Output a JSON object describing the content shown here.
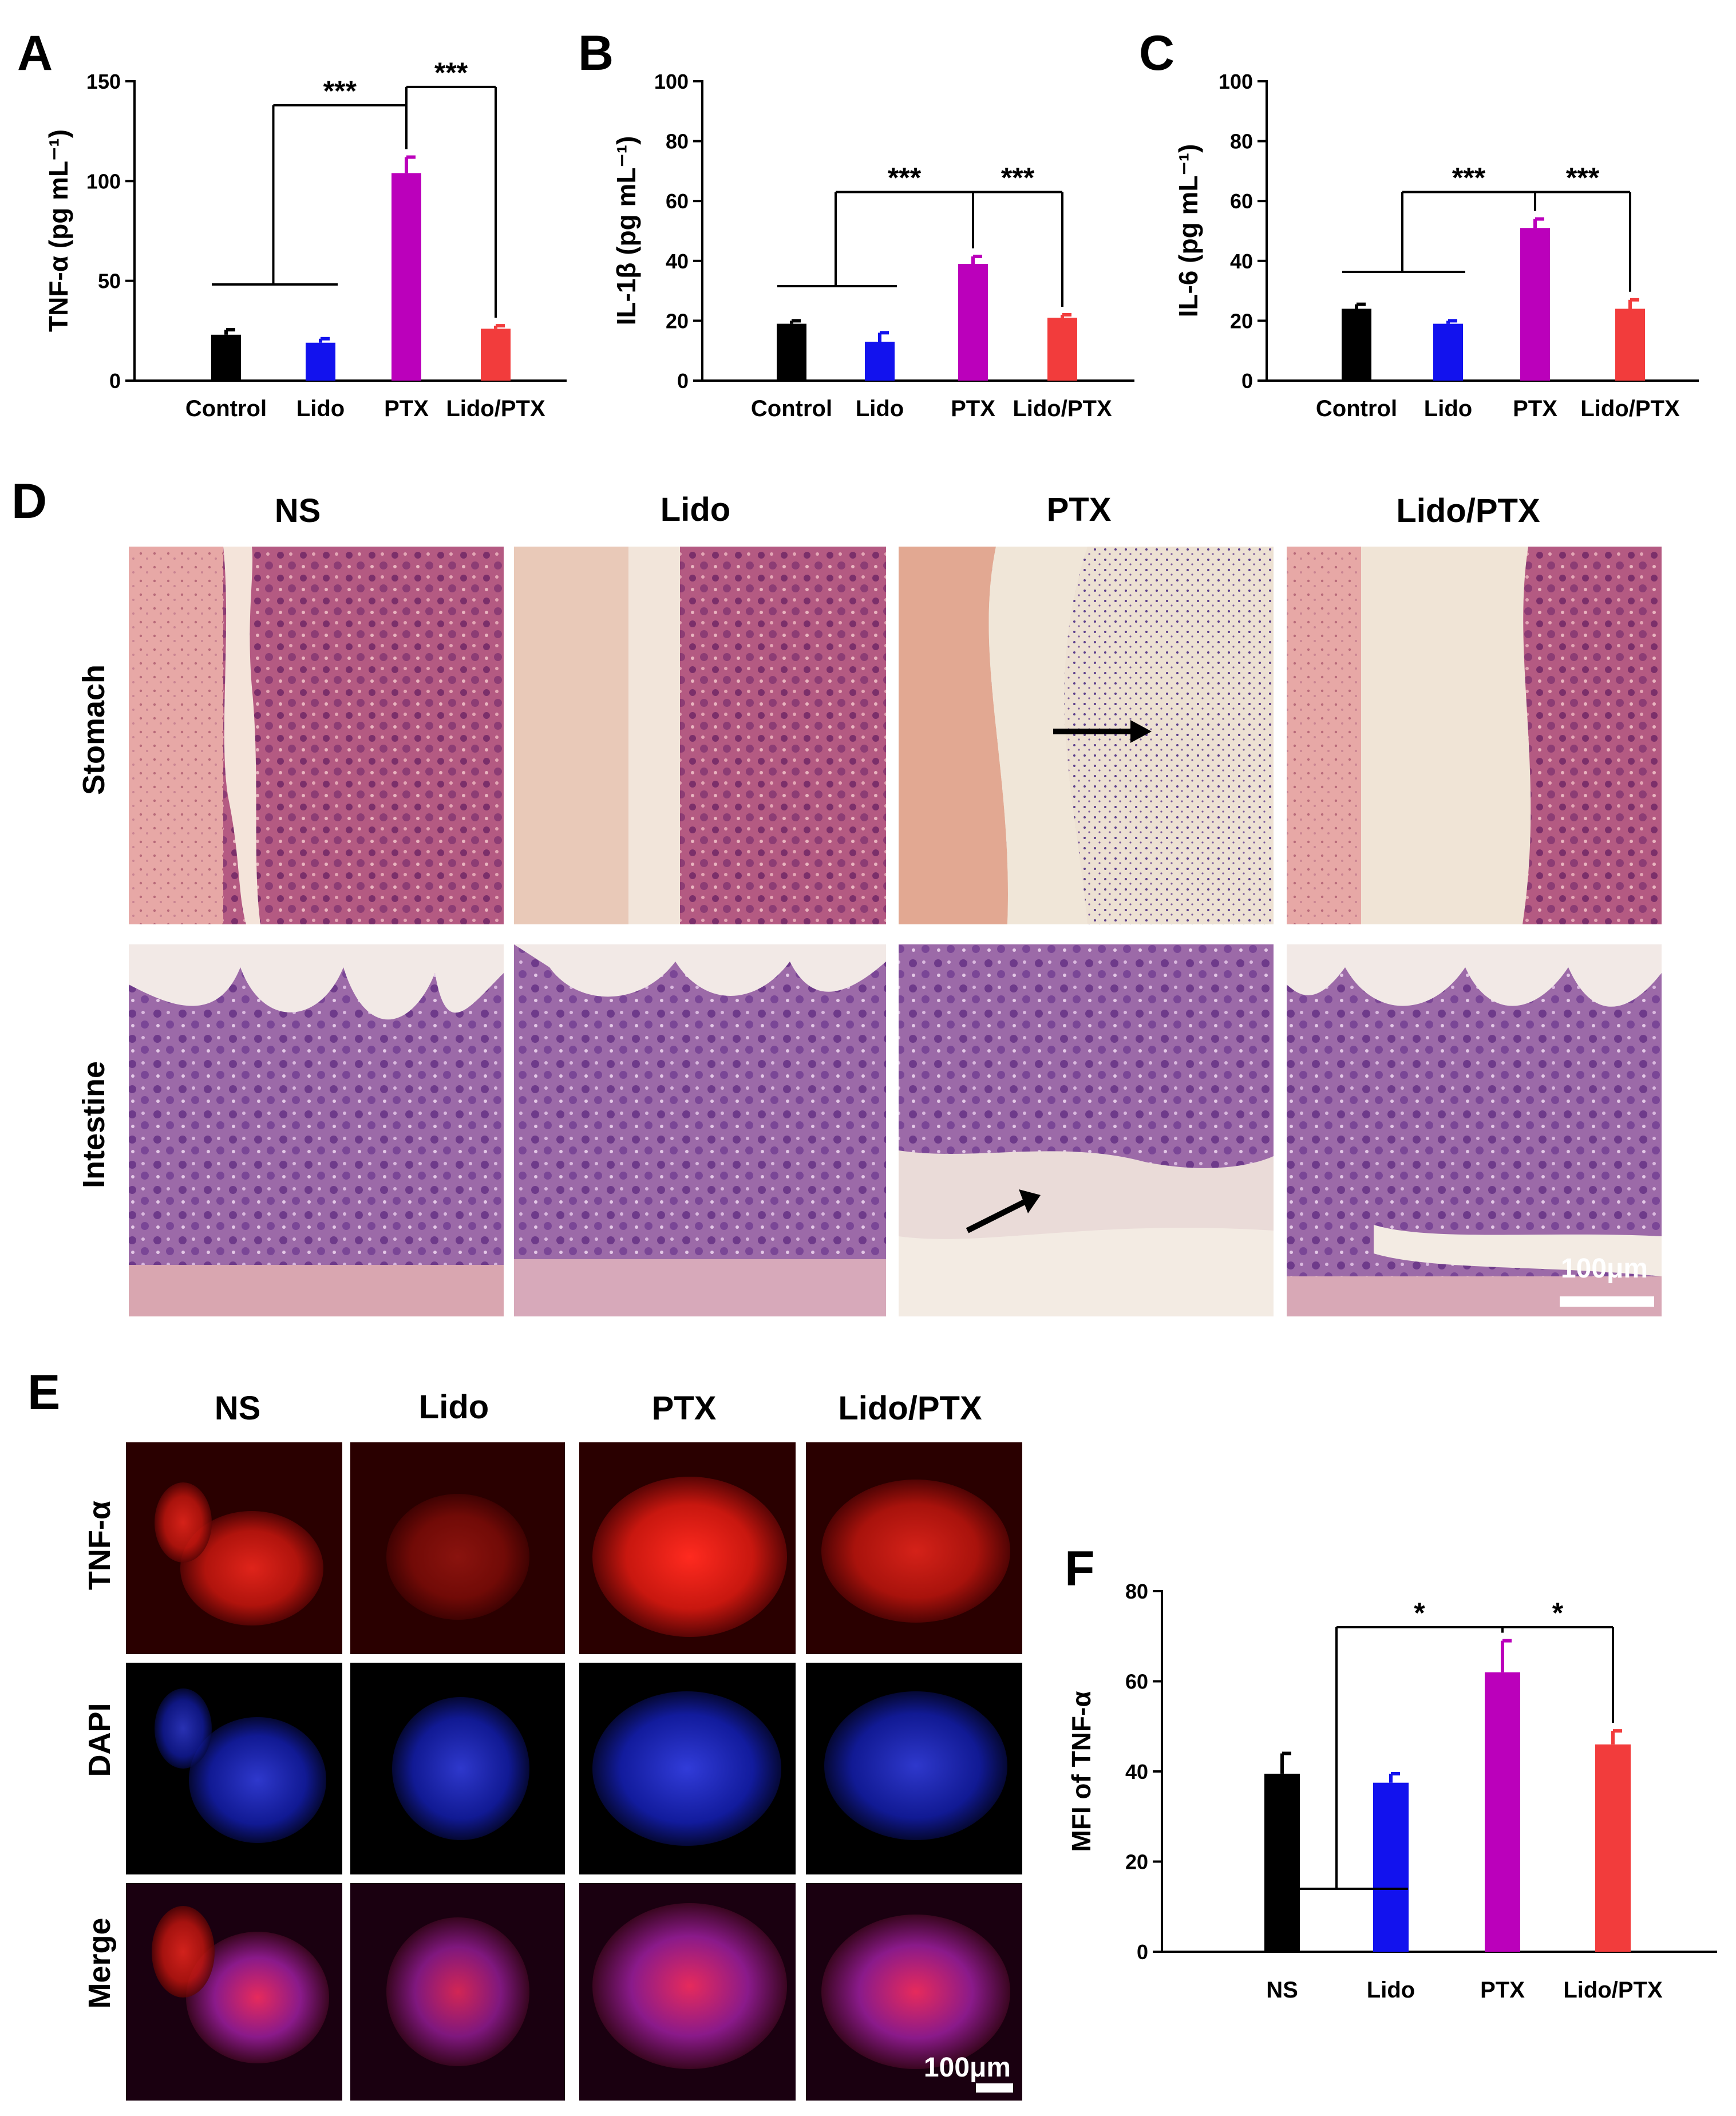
{
  "chart_data": [
    {
      "panel": "A",
      "type": "bar",
      "categories": [
        "Control",
        "Lido",
        "PTX",
        "Lido/PTX"
      ],
      "values": [
        23,
        19,
        104,
        26
      ],
      "errors": [
        2.5,
        2,
        8,
        1.5
      ],
      "ylabel": "TNF-α (pg mL⁻¹)",
      "ylim": [
        0,
        150
      ],
      "yticks": [
        "0",
        "50",
        "100",
        "150"
      ],
      "significance": [
        "***",
        "***"
      ],
      "colors": [
        "#000000",
        "#1212ee",
        "#bb00bb",
        "#f23c3c"
      ]
    },
    {
      "panel": "B",
      "type": "bar",
      "categories": [
        "Control",
        "Lido",
        "PTX",
        "Lido/PTX"
      ],
      "values": [
        19,
        13,
        39,
        21
      ],
      "errors": [
        1,
        3,
        2.5,
        1
      ],
      "ylabel": "IL-1β (pg mL⁻¹)",
      "ylim": [
        0,
        100
      ],
      "yticks": [
        "0",
        "20",
        "40",
        "60",
        "80",
        "100"
      ],
      "significance": [
        "***",
        "***"
      ],
      "colors": [
        "#000000",
        "#1212ee",
        "#bb00bb",
        "#f23c3c"
      ]
    },
    {
      "panel": "C",
      "type": "bar",
      "categories": [
        "Control",
        "Lido",
        "PTX",
        "Lido/PTX"
      ],
      "values": [
        24,
        19,
        51,
        24
      ],
      "errors": [
        1.5,
        1,
        3,
        3
      ],
      "ylabel": "IL-6 (pg mL⁻¹)",
      "ylim": [
        0,
        100
      ],
      "yticks": [
        "0",
        "20",
        "40",
        "60",
        "80",
        "100"
      ],
      "significance": [
        "***",
        "***"
      ],
      "colors": [
        "#000000",
        "#1212ee",
        "#bb00bb",
        "#f23c3c"
      ]
    },
    {
      "panel": "F",
      "type": "bar",
      "categories": [
        "NS",
        "Lido",
        "PTX",
        "Lido/PTX"
      ],
      "values": [
        39.5,
        37.5,
        62,
        46
      ],
      "errors": [
        4.5,
        2,
        7,
        3
      ],
      "ylabel": "MFI of TNF-α",
      "ylim": [
        0,
        80
      ],
      "yticks": [
        "0",
        "20",
        "40",
        "60",
        "80"
      ],
      "significance": [
        "*",
        "*"
      ],
      "colors": [
        "#000000",
        "#1212ee",
        "#bb00bb",
        "#f23c3c"
      ]
    }
  ],
  "panel_d": {
    "letter": "D",
    "columns": [
      "NS",
      "Lido",
      "PTX",
      "Lido/PTX"
    ],
    "rows": [
      "Stomach",
      "Intestine"
    ],
    "scale_bar": "100μm"
  },
  "panel_e": {
    "letter": "E",
    "columns": [
      "NS",
      "Lido",
      "PTX",
      "Lido/PTX"
    ],
    "rows": [
      "TNF-α",
      "DAPI",
      "Merge"
    ],
    "scale_bar": "100μm"
  }
}
